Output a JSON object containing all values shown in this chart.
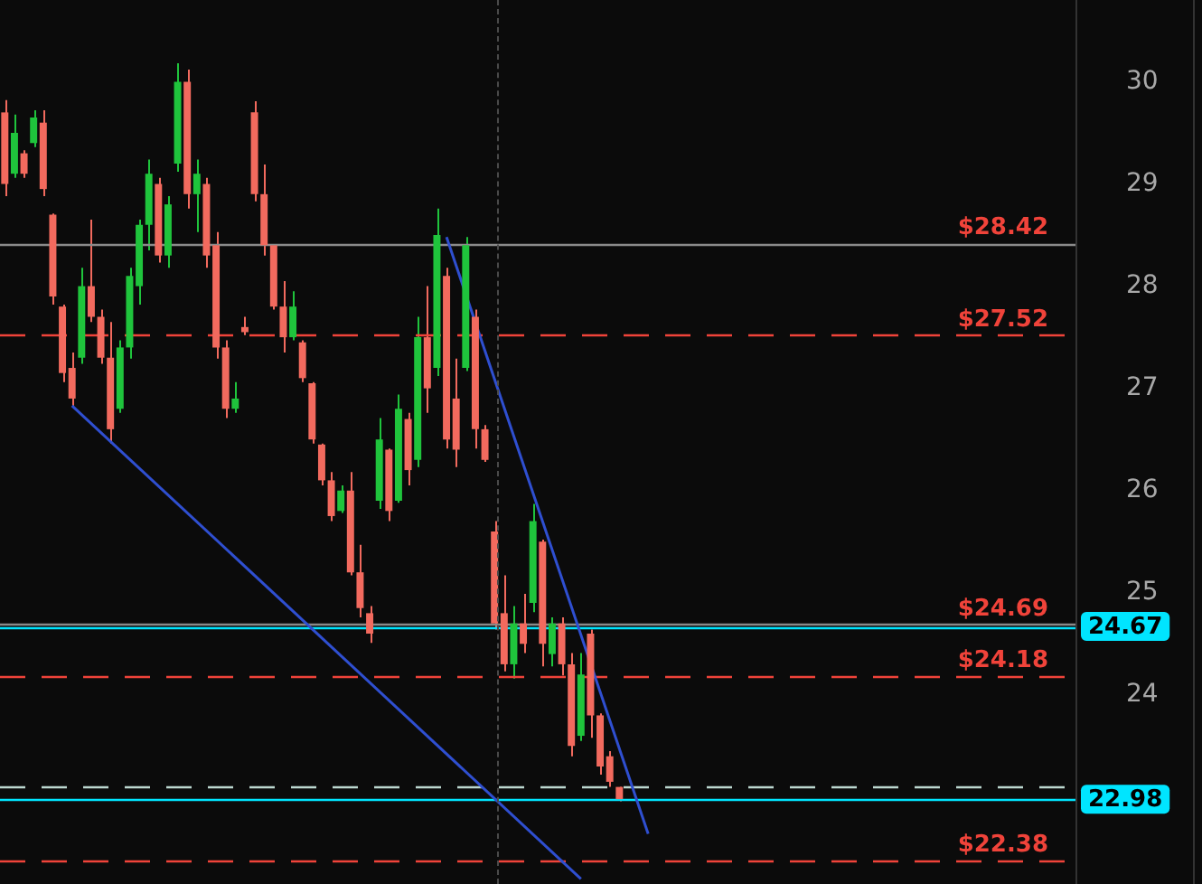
{
  "chart_data": {
    "type": "candlestick",
    "categories": [
      null,
      null,
      null,
      null,
      null,
      null,
      null,
      null,
      null,
      null,
      null,
      null,
      null,
      null,
      null,
      null,
      null,
      null,
      null,
      null,
      null,
      null,
      null,
      null,
      null,
      null,
      null,
      null,
      null,
      null,
      null,
      null,
      null,
      null,
      null,
      null,
      null,
      null,
      null,
      null,
      null,
      null,
      null,
      null,
      null,
      null,
      null,
      null,
      null,
      null,
      null,
      null,
      null,
      null,
      null,
      null,
      null,
      null,
      null,
      null,
      null,
      null,
      null,
      null,
      null,
      null,
      null,
      null,
      null,
      null,
      null,
      null,
      null,
      null,
      null,
      null,
      null,
      null,
      null,
      null,
      null,
      null,
      null,
      null,
      null,
      null,
      null,
      null,
      null,
      null,
      null,
      null,
      null,
      null,
      null,
      null,
      null,
      null,
      null,
      null,
      null,
      null,
      null,
      null,
      null,
      null,
      null,
      null,
      null,
      null,
      null,
      null
    ],
    "ohlc": [
      [
        29.7,
        29.82,
        28.88,
        29.0
      ],
      [
        29.1,
        29.68,
        29.06,
        29.5
      ],
      [
        29.3,
        29.33,
        29.06,
        29.1
      ],
      [
        29.4,
        29.72,
        29.36,
        29.65
      ],
      [
        29.6,
        29.72,
        28.88,
        28.95
      ],
      [
        28.7,
        28.71,
        27.82,
        27.9
      ],
      [
        27.8,
        27.82,
        27.06,
        27.15
      ],
      [
        27.2,
        27.35,
        26.81,
        26.9
      ],
      [
        27.3,
        28.18,
        27.24,
        28.0
      ],
      [
        28.0,
        28.65,
        27.65,
        27.7
      ],
      [
        27.7,
        27.77,
        27.24,
        27.3
      ],
      [
        27.3,
        27.65,
        26.46,
        26.6
      ],
      [
        26.8,
        27.47,
        26.76,
        27.4
      ],
      [
        27.4,
        28.18,
        27.29,
        28.1
      ],
      [
        28.0,
        28.65,
        27.82,
        28.6
      ],
      [
        28.6,
        29.24,
        28.35,
        29.1
      ],
      [
        29.0,
        29.06,
        28.23,
        28.3
      ],
      [
        28.3,
        28.88,
        28.18,
        28.8
      ],
      [
        29.2,
        30.18,
        29.12,
        30.0
      ],
      [
        30.0,
        30.12,
        28.76,
        28.9
      ],
      [
        28.9,
        29.24,
        28.53,
        29.1
      ],
      [
        29.0,
        29.06,
        28.18,
        28.3
      ],
      [
        28.4,
        28.53,
        27.29,
        27.4
      ],
      [
        27.4,
        27.47,
        26.71,
        26.8
      ],
      [
        26.8,
        27.06,
        26.76,
        26.9
      ],
      [
        27.6,
        27.7,
        27.52,
        27.55
      ],
      [
        29.7,
        29.81,
        28.83,
        28.9
      ],
      [
        28.9,
        29.19,
        28.3,
        28.4
      ],
      [
        28.4,
        28.41,
        27.77,
        27.8
      ],
      [
        27.8,
        28.05,
        27.35,
        27.5
      ],
      [
        27.5,
        27.95,
        27.47,
        27.8
      ],
      [
        27.45,
        27.47,
        27.06,
        27.1
      ],
      [
        27.05,
        27.06,
        26.46,
        26.5
      ],
      [
        26.45,
        26.46,
        26.05,
        26.1
      ],
      [
        26.1,
        26.18,
        25.7,
        25.75
      ],
      [
        25.8,
        26.05,
        25.78,
        26.0
      ],
      [
        26.0,
        26.18,
        25.17,
        25.2
      ],
      [
        25.2,
        25.47,
        24.76,
        24.85
      ],
      [
        24.8,
        24.87,
        24.51,
        24.6
      ],
      [
        25.9,
        26.71,
        25.82,
        26.5
      ],
      [
        26.4,
        26.41,
        25.7,
        25.8
      ],
      [
        25.9,
        26.94,
        25.88,
        26.8
      ],
      [
        26.7,
        26.76,
        26.05,
        26.2
      ],
      [
        26.3,
        27.7,
        26.23,
        27.5
      ],
      [
        27.5,
        28.0,
        26.76,
        27.0
      ],
      [
        27.2,
        28.76,
        27.12,
        28.5
      ],
      [
        28.1,
        28.18,
        26.41,
        26.5
      ],
      [
        26.9,
        27.29,
        26.23,
        26.4
      ],
      [
        27.2,
        28.48,
        27.17,
        28.4
      ],
      [
        27.7,
        27.77,
        26.41,
        26.6
      ],
      [
        26.6,
        26.64,
        26.28,
        26.3
      ],
      [
        25.6,
        25.7,
        24.64,
        24.7
      ],
      [
        24.8,
        25.17,
        24.23,
        24.3
      ],
      [
        24.3,
        24.87,
        24.16,
        24.7
      ],
      [
        24.7,
        24.99,
        24.41,
        24.5
      ],
      [
        24.9,
        25.87,
        24.81,
        25.7
      ],
      [
        25.5,
        25.52,
        24.28,
        24.5
      ],
      [
        24.4,
        24.76,
        24.28,
        24.7
      ],
      [
        24.7,
        24.76,
        24.19,
        24.3
      ],
      [
        24.3,
        24.41,
        23.4,
        23.5
      ],
      [
        23.6,
        24.41,
        23.55,
        24.2
      ],
      [
        24.6,
        24.64,
        23.58,
        23.8
      ],
      [
        23.8,
        23.82,
        23.22,
        23.3
      ],
      [
        23.4,
        23.45,
        23.1,
        23.15
      ],
      [
        23.1,
        23.1,
        22.96,
        22.98
      ],
      null,
      null,
      null,
      null,
      null,
      null,
      null,
      null,
      null,
      null,
      null,
      null,
      null,
      null,
      null,
      null,
      null,
      null,
      null,
      null,
      null,
      null,
      null,
      null,
      null,
      null,
      null,
      null,
      null,
      null,
      null,
      null,
      null,
      null,
      null,
      null,
      null,
      null,
      null,
      null,
      null,
      null,
      null,
      null,
      null,
      null,
      null
    ],
    "colors": [
      "#f26a5e",
      "#1fc43c",
      "#f26a5e",
      "#1fc43c",
      "#f26a5e",
      "#f26a5e",
      "#f26a5e",
      "#f26a5e",
      "#1fc43c",
      "#f26a5e",
      "#f26a5e",
      "#f26a5e",
      "#1fc43c",
      "#1fc43c",
      "#1fc43c",
      "#1fc43c",
      "#f26a5e",
      "#1fc43c",
      "#1fc43c",
      "#f26a5e",
      "#1fc43c",
      "#f26a5e",
      "#f26a5e",
      "#f26a5e",
      "#1fc43c",
      "#f26a5e",
      "#f26a5e",
      "#f26a5e",
      "#f26a5e",
      "#f26a5e",
      "#1fc43c",
      "#f26a5e",
      "#f26a5e",
      "#f26a5e",
      "#f26a5e",
      "#1fc43c",
      "#f26a5e",
      "#f26a5e",
      "#f26a5e",
      "#1fc43c",
      "#f26a5e",
      "#1fc43c",
      "#f26a5e",
      "#1fc43c",
      "#f26a5e",
      "#1fc43c",
      "#f26a5e",
      "#f26a5e",
      "#1fc43c",
      "#f26a5e",
      "#f26a5e",
      "#f26a5e",
      "#f26a5e",
      "#1fc43c",
      "#f26a5e",
      "#1fc43c",
      "#f26a5e",
      "#1fc43c",
      "#f26a5e",
      "#f26a5e",
      "#1fc43c",
      "#f26a5e",
      "#f26a5e",
      "#f26a5e",
      "#f26a5e",
      null,
      null,
      null,
      null,
      null,
      null,
      null,
      null,
      null,
      null,
      null,
      null,
      null,
      null,
      null,
      null,
      null,
      null,
      null,
      null,
      null,
      null,
      null,
      null,
      null,
      null,
      null,
      null,
      null,
      null,
      null,
      null,
      null,
      null,
      null,
      null,
      null,
      null,
      null,
      null,
      null,
      null,
      null,
      null,
      null,
      null,
      null
    ],
    "series": [
      {
        "type": "line",
        "color": "#2f4fd0",
        "values": [
          null,
          null,
          null,
          null,
          null,
          null,
          null,
          26.83,
          null,
          null,
          null,
          null,
          null,
          null,
          null,
          null,
          null,
          null,
          null,
          null,
          null,
          null,
          null,
          null,
          null,
          null,
          null,
          null,
          null,
          null,
          null,
          null,
          null,
          null,
          null,
          null,
          null,
          null,
          null,
          null,
          null,
          null,
          null,
          null,
          null,
          null,
          null,
          null,
          null,
          null,
          null,
          null,
          null,
          null,
          null,
          null,
          null,
          null,
          null,
          null,
          22.2,
          null,
          null,
          null,
          null,
          null,
          null,
          null,
          null,
          null,
          null,
          null,
          null,
          null,
          null,
          null,
          null,
          null,
          null,
          null,
          null,
          null,
          null,
          null,
          null,
          null,
          null,
          null,
          null,
          null,
          null,
          null,
          null,
          null,
          null,
          null,
          null,
          null,
          null,
          null,
          null,
          null,
          null,
          null,
          null,
          null,
          null,
          null,
          null,
          null,
          null,
          null
        ]
      },
      {
        "type": "line",
        "color": "#2f4fd0",
        "values": [
          null,
          null,
          null,
          null,
          null,
          null,
          null,
          null,
          null,
          null,
          null,
          null,
          null,
          null,
          null,
          null,
          null,
          null,
          null,
          null,
          null,
          null,
          null,
          null,
          null,
          null,
          null,
          null,
          null,
          null,
          null,
          null,
          null,
          null,
          null,
          null,
          null,
          null,
          null,
          null,
          null,
          null,
          null,
          null,
          null,
          null,
          28.48,
          null,
          null,
          null,
          null,
          null,
          null,
          null,
          null,
          null,
          null,
          null,
          null,
          null,
          null,
          null,
          null,
          null,
          null,
          null,
          null,
          22.64,
          null,
          null,
          null,
          null,
          null,
          null,
          null,
          null,
          null,
          null,
          null,
          null,
          null,
          null,
          null,
          null,
          null,
          null,
          null,
          null,
          null,
          null,
          null,
          null,
          null,
          null,
          null,
          null,
          null,
          null,
          null,
          null,
          null,
          null,
          null,
          null,
          null,
          null,
          null,
          null,
          null,
          null,
          null,
          null
        ]
      }
    ],
    "ylim": [
      22.15,
      30.8
    ],
    "yticks": [
      24,
      25,
      26,
      27,
      28,
      29,
      30
    ],
    "grid": false,
    "ref_lines": [
      {
        "axis": "y",
        "value": 28.42,
        "label": "$28.42",
        "color": "#8a8a8a",
        "line_style": "solid"
      },
      {
        "axis": "y",
        "value": 27.52,
        "label": "$27.52",
        "color": "#f0433a",
        "line_style": "dashed"
      },
      {
        "axis": "y",
        "value": 24.69,
        "label": "$24.69",
        "color": "#8a8a8a",
        "line_style": "solid"
      },
      {
        "axis": "y",
        "value": 24.18,
        "label": "$24.18",
        "color": "#f0433a",
        "line_style": "dashed"
      },
      {
        "axis": "y",
        "value": 22.38,
        "label": "$22.38",
        "color": "#f0433a",
        "line_style": "dashed"
      },
      {
        "axis": "y",
        "value": 24.67,
        "label": "24.67",
        "color": "#00e5ff",
        "line_style": "solid"
      },
      {
        "axis": "y",
        "value": 22.98,
        "label": "22.98",
        "color": "#00e5ff",
        "line_style": "solid"
      },
      {
        "axis": "y",
        "value": 23.11,
        "color": "#bcd8d0",
        "line_style": "dashed"
      }
    ]
  }
}
